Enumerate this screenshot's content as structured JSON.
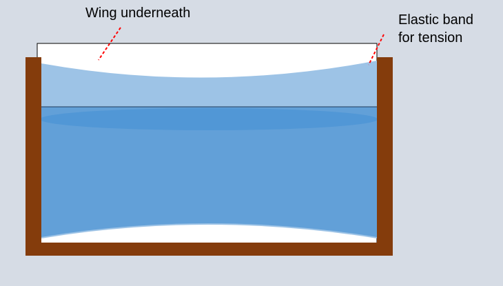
{
  "labels": {
    "wing": "Wing underneath",
    "elastic_line1": "Elastic band",
    "elastic_line2": "for tension"
  },
  "colors": {
    "background": "#d6dce5",
    "frame": "#843c0c",
    "wing": "#ffffff",
    "upper_sheet": "#9dc3e6",
    "lower_sheet": "#5b9bd5",
    "pointer": "#ff0000"
  }
}
